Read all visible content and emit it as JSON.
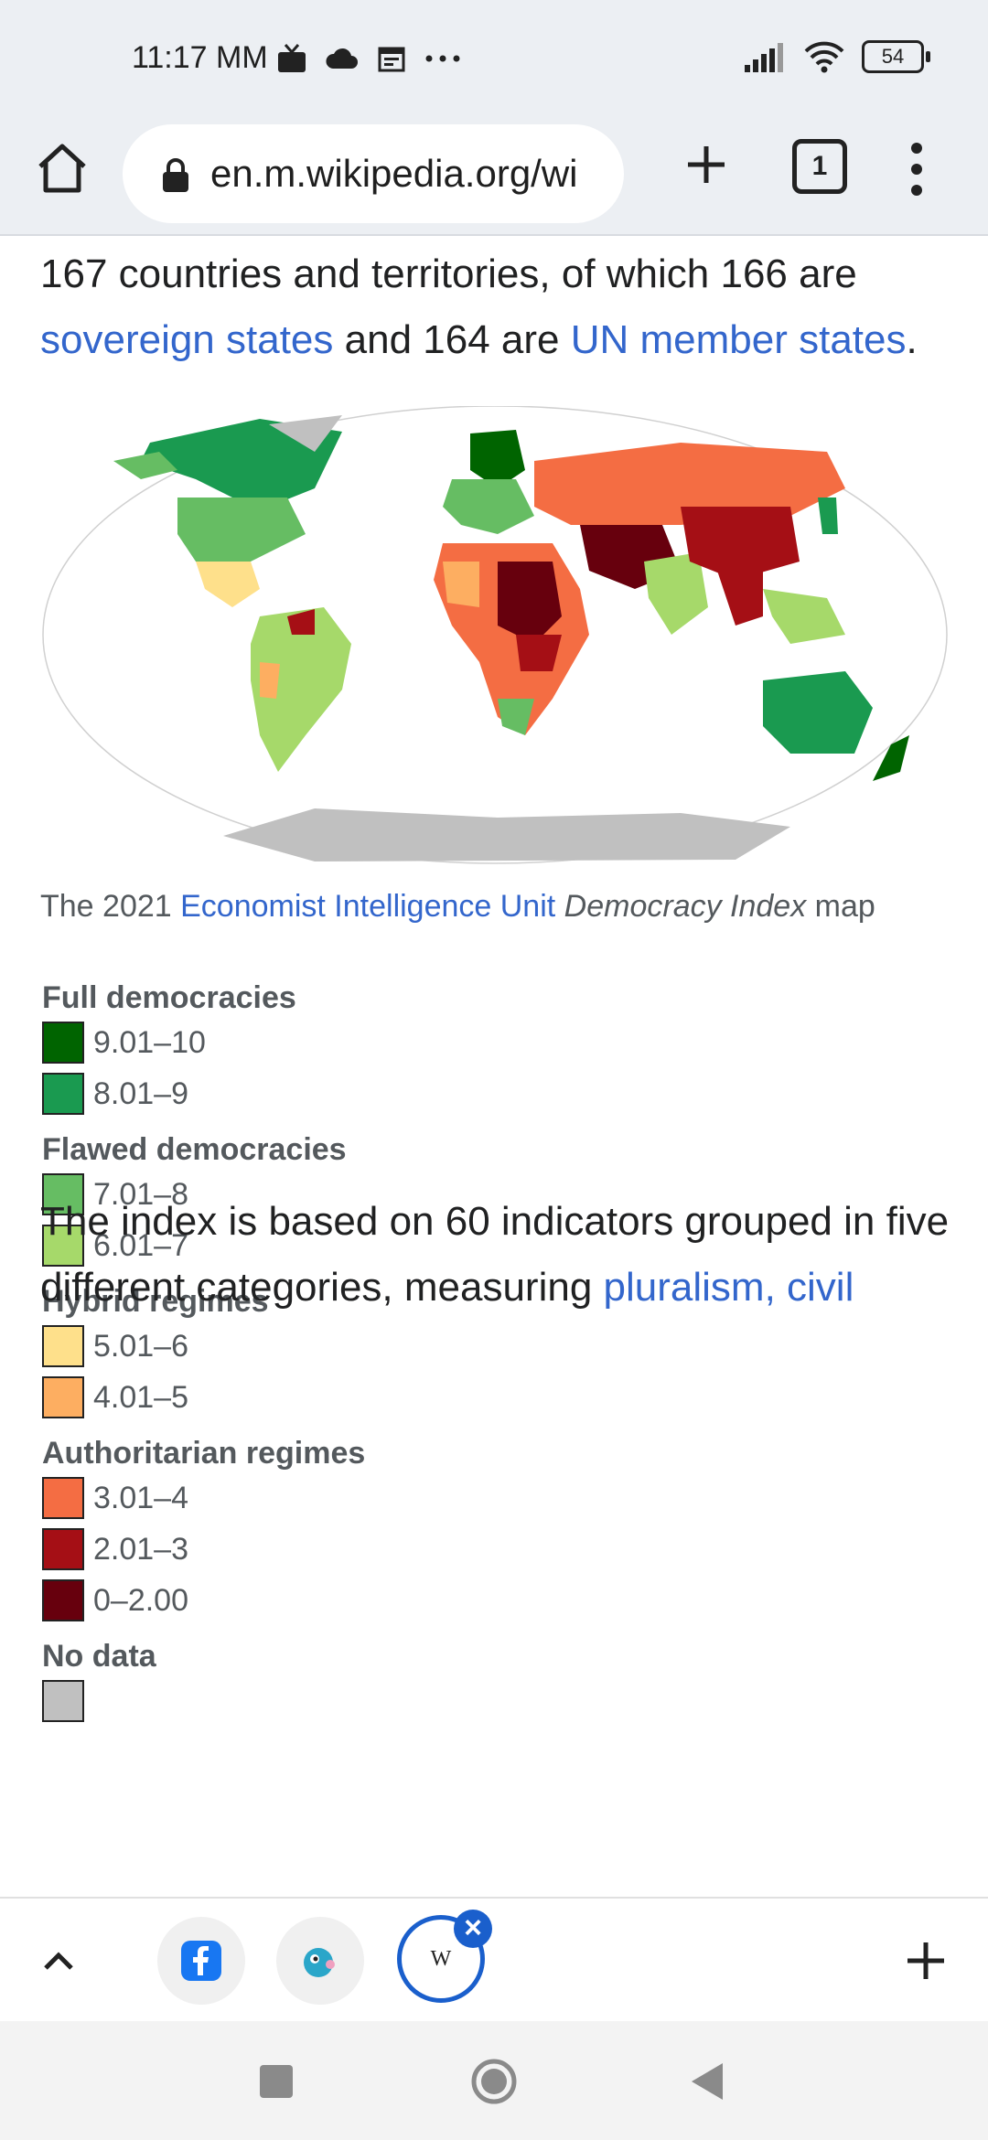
{
  "status": {
    "time": "11:17 MM",
    "battery": "54"
  },
  "browser": {
    "url": "en.m.wikipedia.org/wi",
    "tab_count": "1"
  },
  "article": {
    "para1_line1": "167 countries and territories, of which 166 are",
    "para1_link1": "sovereign states",
    "para1_mid": " and 164 are ",
    "para1_link2": "UN member states",
    "para1_end": ".",
    "caption_pre": "The 2021 ",
    "caption_link": "Economist Intelligence Unit",
    "caption_italic": "Democracy Index",
    "caption_post": " map",
    "para2_line1": "The index is based on 60 indicators grouped in five",
    "para2_line2_text": "different categories, measuring ",
    "para2_line2_link": "pluralism, civil"
  },
  "legend": {
    "groups": [
      {
        "heading": "Full democracies",
        "items": [
          {
            "label": "9.01–10",
            "color": "#006400"
          },
          {
            "label": "8.01–9",
            "color": "#1a9a50"
          }
        ]
      },
      {
        "heading": "Flawed democracies",
        "items": [
          {
            "label": "7.01–8",
            "color": "#66bd63"
          },
          {
            "label": "6.01–7",
            "color": "#a6d96a"
          }
        ]
      },
      {
        "heading": "Hybrid regimes",
        "items": [
          {
            "label": "5.01–6",
            "color": "#fee08b"
          },
          {
            "label": "4.01–5",
            "color": "#fdae61"
          }
        ]
      },
      {
        "heading": "Authoritarian regimes",
        "items": [
          {
            "label": "3.01–4",
            "color": "#f46d43"
          },
          {
            "label": "2.01–3",
            "color": "#a50f15"
          },
          {
            "label": "0–2.00",
            "color": "#67000d"
          }
        ]
      },
      {
        "heading": "No data",
        "items": [
          {
            "label": "",
            "color": "#c0c0c0"
          }
        ]
      }
    ]
  },
  "bottom_tabs": {
    "active_tab_glyph": "W"
  },
  "icons": {
    "home": "home-icon",
    "lock": "lock-icon",
    "plus": "plus-icon",
    "menu": "more-vert-icon",
    "facebook": "facebook-icon",
    "nav_back": "back-icon",
    "nav_home": "nav-home-icon",
    "nav_recents": "recents-icon"
  }
}
